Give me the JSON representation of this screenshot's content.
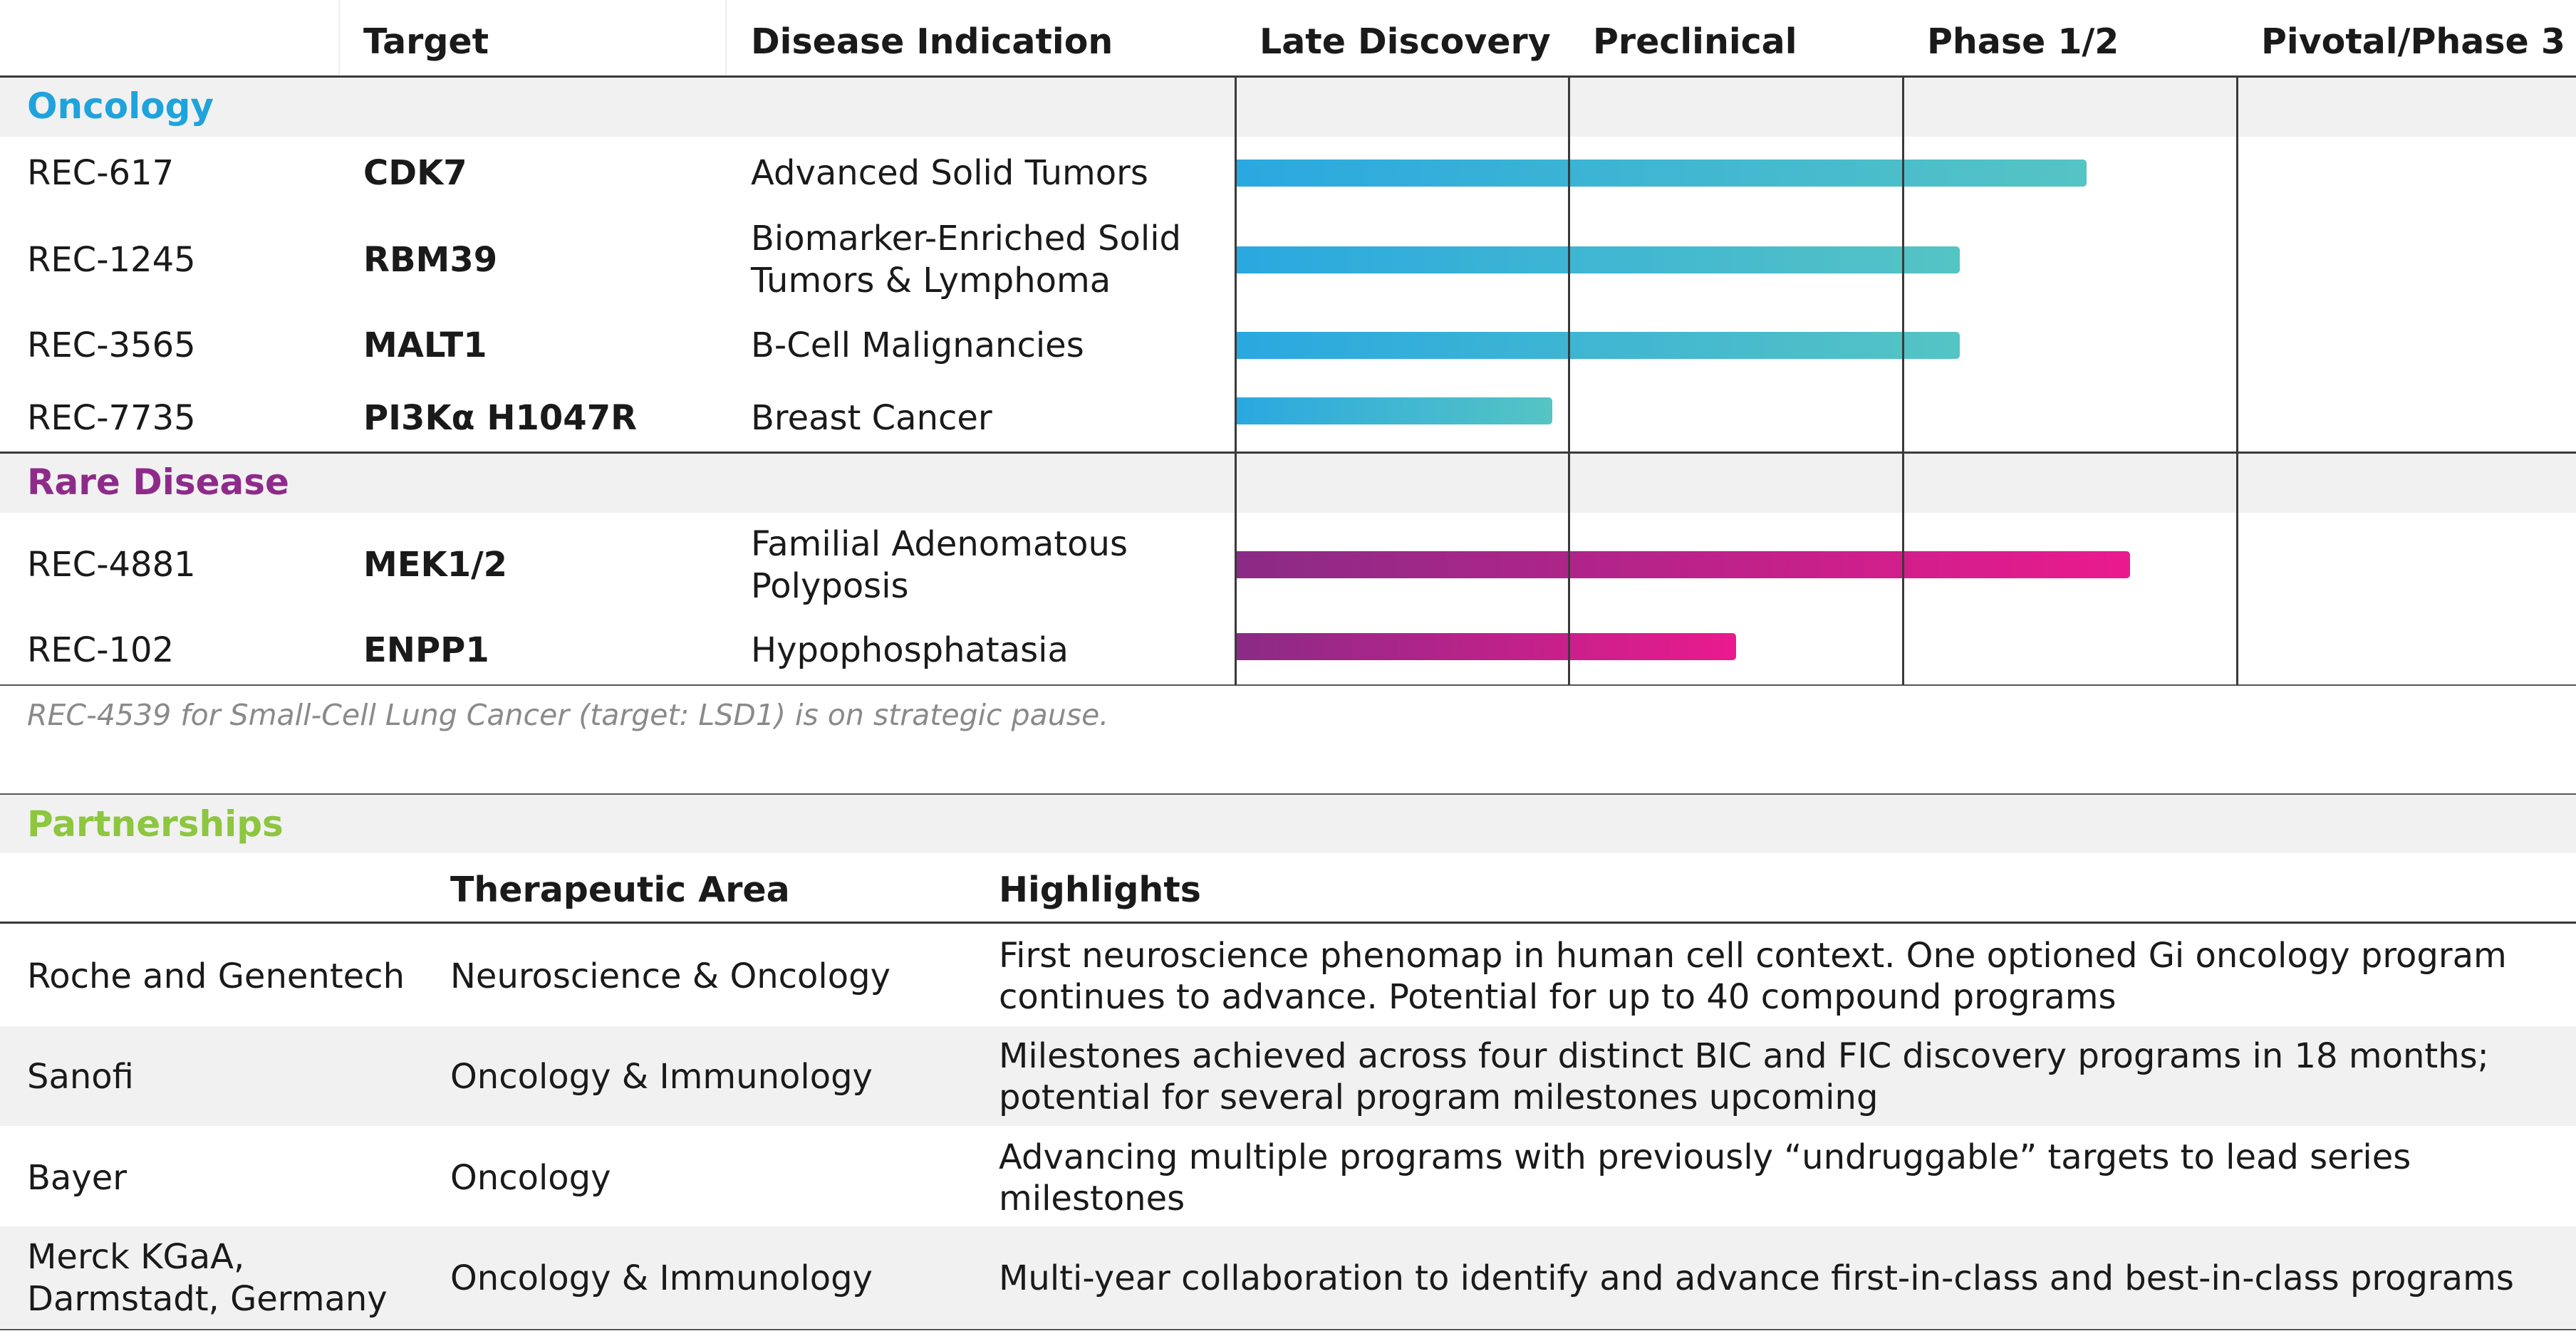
{
  "pipeline": {
    "columns": {
      "target": "Target",
      "indication": "Disease Indication",
      "stages": [
        "Late Discovery",
        "Preclinical",
        "Phase 1/2",
        "Pivotal/Phase 3"
      ]
    },
    "oncology": {
      "label": "Oncology",
      "color": "#1fa3dc",
      "rows": [
        {
          "program": "REC-617",
          "target": "CDK7",
          "indication": [
            "Advanced Solid Tumors"
          ],
          "progress_stages": 2.55
        },
        {
          "program": "REC-1245",
          "target": "RBM39",
          "indication": [
            "Biomarker-Enriched Solid",
            "Tumors & Lymphoma"
          ],
          "progress_stages": 2.17
        },
        {
          "program": "REC-3565",
          "target": "MALT1",
          "indication": [
            "B-Cell Malignancies"
          ],
          "progress_stages": 2.17
        },
        {
          "program": "REC-7735",
          "target": "PI3Kα H1047R",
          "indication": [
            "Breast Cancer"
          ],
          "progress_stages": 0.95
        }
      ]
    },
    "rare": {
      "label": "Rare Disease",
      "color": "#8e2b8a",
      "rows": [
        {
          "program": "REC-4881",
          "target": "MEK1/2",
          "indication": [
            "Familial Adenomatous",
            "Polyposis"
          ],
          "progress_stages": 2.68
        },
        {
          "program": "REC-102",
          "target": "ENPP1",
          "indication": [
            "Hypophosphatasia"
          ],
          "progress_stages": 1.5
        }
      ]
    },
    "footnote": "REC-4539 for Small-Cell Lung Cancer (target: LSD1) is on strategic pause."
  },
  "partnerships": {
    "label": "Partnerships",
    "color": "#8dc63f",
    "headers": {
      "area": "Therapeutic Area",
      "highlights": "Highlights"
    },
    "rows": [
      {
        "partner": [
          "Roche and Genentech"
        ],
        "area": "Neuroscience & Oncology",
        "highlights": [
          "First neuroscience phenomap in human cell context. One optioned Gi oncology program",
          "continues to advance. Potential for up to 40 compound programs"
        ]
      },
      {
        "partner": [
          "Sanofi"
        ],
        "area": "Oncology & Immunology",
        "highlights": [
          "Milestones achieved across four distinct BIC and FIC discovery programs in 18 months;",
          "potential for several program milestones upcoming"
        ]
      },
      {
        "partner": [
          "Bayer"
        ],
        "area": "Oncology",
        "highlights": [
          "Advancing multiple programs with previously “undruggable” targets to lead series",
          "milestones"
        ]
      },
      {
        "partner": [
          "Merck KGaA,",
          "Darmstadt, Germany"
        ],
        "area": "Oncology & Immunology",
        "highlights": [
          "Multi-year collaboration to identify and advance first-in-class and best-in-class programs"
        ]
      }
    ]
  }
}
